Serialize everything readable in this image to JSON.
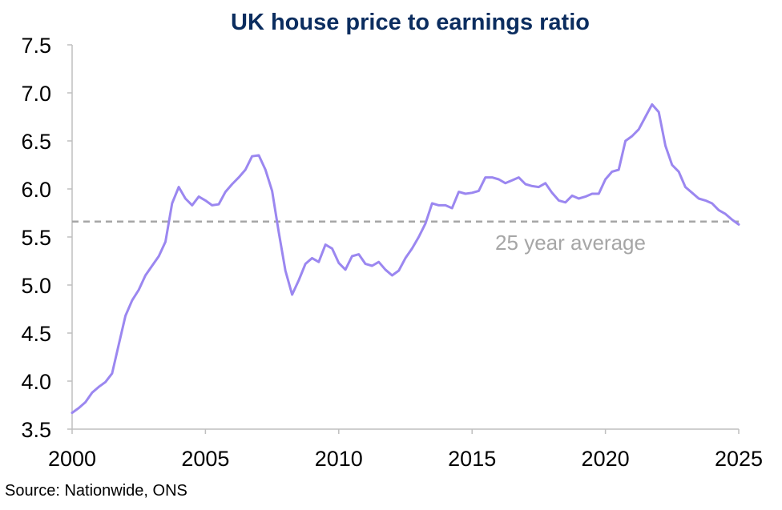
{
  "chart_data": {
    "type": "line",
    "title": "UK house price to earnings ratio",
    "xlabel": "",
    "ylabel": "",
    "xlim": [
      2000,
      2025
    ],
    "ylim": [
      3.5,
      7.5
    ],
    "x_ticks": [
      "2000",
      "2005",
      "2010",
      "2015",
      "2020",
      "2025"
    ],
    "y_ticks": [
      "3.5",
      "4.0",
      "4.5",
      "5.0",
      "5.5",
      "6.0",
      "6.5",
      "7.0",
      "7.5"
    ],
    "grid": false,
    "series": [
      {
        "color": "#9b87f0",
        "x": [
          2000.0,
          2000.25,
          2000.5,
          2000.75,
          2001.0,
          2001.25,
          2001.5,
          2001.75,
          2002.0,
          2002.25,
          2002.5,
          2002.75,
          2003.0,
          2003.25,
          2003.5,
          2003.75,
          2004.0,
          2004.25,
          2004.5,
          2004.75,
          2005.0,
          2005.25,
          2005.5,
          2005.75,
          2006.0,
          2006.25,
          2006.5,
          2006.75,
          2007.0,
          2007.25,
          2007.5,
          2007.75,
          2008.0,
          2008.25,
          2008.5,
          2008.75,
          2009.0,
          2009.25,
          2009.5,
          2009.75,
          2010.0,
          2010.25,
          2010.5,
          2010.75,
          2011.0,
          2011.25,
          2011.5,
          2011.75,
          2012.0,
          2012.25,
          2012.5,
          2012.75,
          2013.0,
          2013.25,
          2013.5,
          2013.75,
          2014.0,
          2014.25,
          2014.5,
          2014.75,
          2015.0,
          2015.25,
          2015.5,
          2015.75,
          2016.0,
          2016.25,
          2016.5,
          2016.75,
          2017.0,
          2017.25,
          2017.5,
          2017.75,
          2018.0,
          2018.25,
          2018.5,
          2018.75,
          2019.0,
          2019.25,
          2019.5,
          2019.75,
          2020.0,
          2020.25,
          2020.5,
          2020.75,
          2021.0,
          2021.25,
          2021.5,
          2021.75,
          2022.0,
          2022.25,
          2022.5,
          2022.75,
          2023.0,
          2023.25,
          2023.5,
          2023.75,
          2024.0,
          2024.25,
          2024.5,
          2024.75,
          2025.0
        ],
        "values": [
          3.67,
          3.72,
          3.78,
          3.88,
          3.94,
          3.99,
          4.08,
          4.38,
          4.68,
          4.84,
          4.95,
          5.1,
          5.2,
          5.3,
          5.45,
          5.85,
          6.02,
          5.9,
          5.83,
          5.92,
          5.88,
          5.83,
          5.84,
          5.97,
          6.05,
          6.12,
          6.2,
          6.34,
          6.35,
          6.2,
          5.98,
          5.55,
          5.15,
          4.9,
          5.05,
          5.22,
          5.28,
          5.24,
          5.42,
          5.38,
          5.23,
          5.16,
          5.3,
          5.32,
          5.22,
          5.2,
          5.24,
          5.16,
          5.1,
          5.15,
          5.28,
          5.38,
          5.5,
          5.64,
          5.85,
          5.83,
          5.83,
          5.8,
          5.97,
          5.95,
          5.96,
          5.98,
          6.12,
          6.12,
          6.1,
          6.06,
          6.09,
          6.12,
          6.05,
          6.03,
          6.02,
          6.06,
          5.96,
          5.88,
          5.86,
          5.93,
          5.9,
          5.92,
          5.95,
          5.95,
          6.1,
          6.18,
          6.2,
          6.5,
          6.55,
          6.62,
          6.75,
          6.88,
          6.8,
          6.45,
          6.25,
          6.18,
          6.02,
          5.96,
          5.9,
          5.88,
          5.85,
          5.78,
          5.74,
          5.68,
          5.63
        ]
      }
    ],
    "annotations": [
      {
        "text": "25 year average",
        "y": 5.66,
        "style": "dashed",
        "color": "#a6a6a6"
      }
    ],
    "source": "Source: Nationwide, ONS"
  }
}
